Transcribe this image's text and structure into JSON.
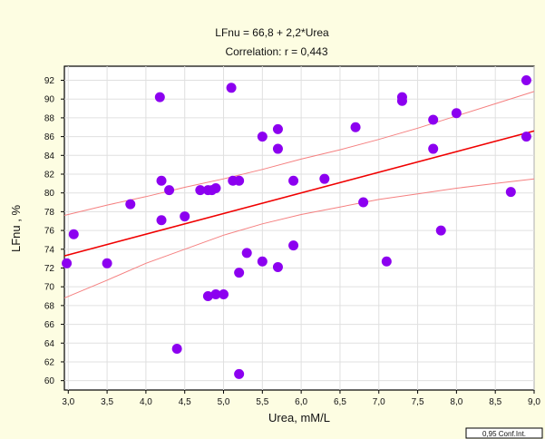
{
  "chart_data": {
    "type": "scatter",
    "title": "LFnu = 66,8 + 2,2*Urea",
    "subtitle": "Correlation: r = 0,443",
    "xlabel": "Urea, mM/L",
    "ylabel": "LFnu , %",
    "xlim": [
      2.95,
      9.0
    ],
    "ylim": [
      59,
      93.5
    ],
    "xticks": [
      3.0,
      3.5,
      4.0,
      4.5,
      5.0,
      5.5,
      6.0,
      6.5,
      7.0,
      7.5,
      8.0,
      8.5,
      9.0
    ],
    "xtick_labels": [
      "3,0",
      "3,5",
      "4,0",
      "4,5",
      "5,0",
      "5,5",
      "6,0",
      "6,5",
      "7,0",
      "7,5",
      "8,0",
      "8,5",
      "9,0"
    ],
    "yticks": [
      60,
      62,
      64,
      66,
      68,
      70,
      72,
      74,
      76,
      78,
      80,
      82,
      84,
      86,
      88,
      90,
      92
    ],
    "ytick_labels": [
      "60",
      "62",
      "64",
      "66",
      "68",
      "70",
      "72",
      "74",
      "76",
      "78",
      "80",
      "82",
      "84",
      "86",
      "88",
      "90",
      "92"
    ],
    "grid": true,
    "legend": "0,95 Conf.Int.",
    "regression": {
      "intercept": 66.8,
      "slope": 2.2
    },
    "conf_upper": [
      [
        2.95,
        77.6
      ],
      [
        3.5,
        78.7
      ],
      [
        4.0,
        79.6
      ],
      [
        4.5,
        80.6
      ],
      [
        5.0,
        81.5
      ],
      [
        5.5,
        82.5
      ],
      [
        6.0,
        83.6
      ],
      [
        6.5,
        84.6
      ],
      [
        7.0,
        85.7
      ],
      [
        7.5,
        86.9
      ],
      [
        8.0,
        88.2
      ],
      [
        8.5,
        89.5
      ],
      [
        9.0,
        90.8
      ]
    ],
    "conf_lower": [
      [
        2.95,
        68.8
      ],
      [
        3.5,
        70.7
      ],
      [
        4.0,
        72.5
      ],
      [
        4.5,
        74.0
      ],
      [
        5.0,
        75.5
      ],
      [
        5.5,
        76.7
      ],
      [
        6.0,
        77.7
      ],
      [
        6.5,
        78.5
      ],
      [
        7.0,
        79.3
      ],
      [
        7.5,
        79.9
      ],
      [
        8.0,
        80.5
      ],
      [
        8.5,
        81.0
      ],
      [
        9.0,
        81.5
      ]
    ],
    "colors": {
      "points": "#8c00f0",
      "fit": "#f00000",
      "conf": "#f58080",
      "background": "#fdfde2"
    },
    "points": [
      {
        "x": 2.98,
        "y": 72.5
      },
      {
        "x": 3.07,
        "y": 75.6
      },
      {
        "x": 3.5,
        "y": 72.5
      },
      {
        "x": 3.8,
        "y": 78.8
      },
      {
        "x": 4.18,
        "y": 90.2
      },
      {
        "x": 4.2,
        "y": 81.3
      },
      {
        "x": 4.2,
        "y": 77.1
      },
      {
        "x": 4.3,
        "y": 80.3
      },
      {
        "x": 4.4,
        "y": 63.4
      },
      {
        "x": 4.5,
        "y": 77.5
      },
      {
        "x": 4.7,
        "y": 80.3
      },
      {
        "x": 4.8,
        "y": 80.3
      },
      {
        "x": 4.85,
        "y": 80.3
      },
      {
        "x": 4.9,
        "y": 80.5
      },
      {
        "x": 4.8,
        "y": 69.0
      },
      {
        "x": 4.9,
        "y": 69.2
      },
      {
        "x": 5.0,
        "y": 69.2
      },
      {
        "x": 5.1,
        "y": 91.2
      },
      {
        "x": 5.12,
        "y": 81.3
      },
      {
        "x": 5.2,
        "y": 81.3
      },
      {
        "x": 5.2,
        "y": 71.5
      },
      {
        "x": 5.2,
        "y": 60.7
      },
      {
        "x": 5.3,
        "y": 73.6
      },
      {
        "x": 5.5,
        "y": 86.0
      },
      {
        "x": 5.5,
        "y": 72.7
      },
      {
        "x": 5.7,
        "y": 86.8
      },
      {
        "x": 5.7,
        "y": 84.7
      },
      {
        "x": 5.7,
        "y": 72.1
      },
      {
        "x": 5.9,
        "y": 81.3
      },
      {
        "x": 5.9,
        "y": 74.4
      },
      {
        "x": 6.3,
        "y": 81.5
      },
      {
        "x": 6.7,
        "y": 87.0
      },
      {
        "x": 6.8,
        "y": 79.0
      },
      {
        "x": 7.1,
        "y": 72.7
      },
      {
        "x": 7.3,
        "y": 90.2
      },
      {
        "x": 7.3,
        "y": 89.8
      },
      {
        "x": 7.7,
        "y": 87.8
      },
      {
        "x": 7.7,
        "y": 84.7
      },
      {
        "x": 7.8,
        "y": 76.0
      },
      {
        "x": 8.0,
        "y": 88.5
      },
      {
        "x": 8.7,
        "y": 80.1
      },
      {
        "x": 8.9,
        "y": 92.0
      },
      {
        "x": 8.9,
        "y": 86.0
      }
    ]
  }
}
